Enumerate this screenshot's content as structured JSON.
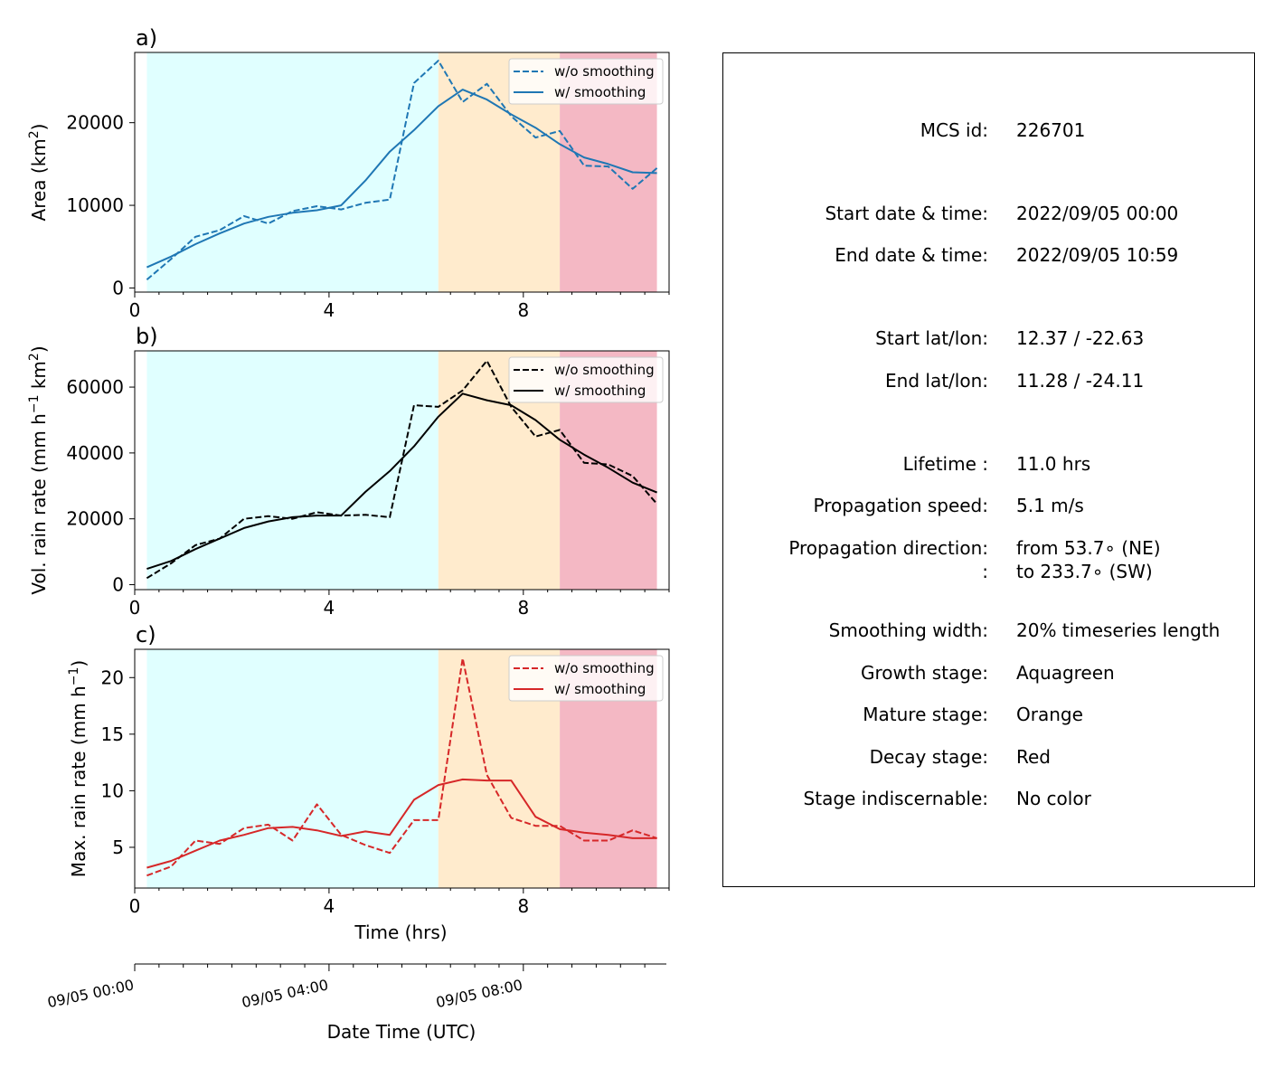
{
  "figure": {
    "stage_colors": {
      "growth": "#e0ffff",
      "mature": "#ffebcd",
      "decay": "#f4b8c4"
    },
    "stage_spans_hrs": {
      "growth": [
        0.25,
        6.25
      ],
      "mature": [
        6.25,
        8.75
      ],
      "decay": [
        8.75,
        10.75
      ]
    },
    "x_axis": {
      "label": "Time (hrs)",
      "ticks": [
        0,
        4,
        8
      ],
      "tick_labels": [
        "0",
        "4",
        "8"
      ],
      "xlim": [
        0,
        11
      ],
      "minor_step": 0.5
    },
    "datetime_axis": {
      "label": "Date Time (UTC)",
      "tick_labels": [
        "09/05 00:00",
        "09/05 04:00",
        "09/05 08:00"
      ]
    }
  },
  "chart_data": [
    {
      "type": "line",
      "panel_label": "a)",
      "ylabel": "Area  (km",
      "ylabel_sup": "2",
      "ylabel_end": ")",
      "ylim": [
        -500,
        28500
      ],
      "yticks": [
        0,
        10000,
        20000
      ],
      "ytick_labels": [
        "0",
        "10000",
        "20000"
      ],
      "color": "#1f77b4",
      "legend_position": "top-right",
      "x": [
        0.25,
        0.75,
        1.25,
        1.75,
        2.25,
        2.75,
        3.25,
        3.75,
        4.25,
        4.75,
        5.25,
        5.75,
        6.25,
        6.75,
        7.25,
        7.75,
        8.25,
        8.75,
        9.25,
        9.75,
        10.25,
        10.75
      ],
      "series": [
        {
          "name": "w/o smoothing",
          "style": "dashed",
          "values": [
            1000,
            3500,
            6200,
            7000,
            8700,
            7800,
            9300,
            9900,
            9500,
            10300,
            10700,
            24800,
            27500,
            22500,
            24700,
            20800,
            18200,
            19000,
            14800,
            14700,
            12000,
            14500
          ]
        },
        {
          "name": "w/ smoothing",
          "style": "solid",
          "values": [
            2500,
            3800,
            5300,
            6600,
            7800,
            8600,
            9100,
            9400,
            10000,
            13000,
            16500,
            19100,
            22000,
            24000,
            22800,
            21000,
            19400,
            17400,
            15800,
            15000,
            14000,
            13900
          ]
        }
      ]
    },
    {
      "type": "line",
      "panel_label": "b)",
      "ylabel": "Vol. rain rate (mm h",
      "ylabel_sup": "−1",
      "ylabel_mid": " km",
      "ylabel_sup2": "2",
      "ylabel_end": ")",
      "ylim": [
        -1500,
        71000
      ],
      "yticks": [
        0,
        20000,
        40000,
        60000
      ],
      "ytick_labels": [
        "0",
        "20000",
        "40000",
        "60000"
      ],
      "color": "#000000",
      "legend_position": "top-right",
      "x": [
        0.25,
        0.75,
        1.25,
        1.75,
        2.25,
        2.75,
        3.25,
        3.75,
        4.25,
        4.75,
        5.25,
        5.75,
        6.25,
        6.75,
        7.25,
        7.75,
        8.25,
        8.75,
        9.25,
        9.75,
        10.25,
        10.75
      ],
      "series": [
        {
          "name": "w/o smoothing",
          "style": "dashed",
          "values": [
            2000,
            6500,
            12000,
            14000,
            20000,
            20800,
            20000,
            22000,
            21000,
            21200,
            20500,
            54500,
            54000,
            59000,
            68000,
            54000,
            45000,
            47000,
            37000,
            36500,
            33000,
            24500
          ]
        },
        {
          "name": "w/ smoothing",
          "style": "solid",
          "values": [
            4800,
            7200,
            10800,
            14000,
            17200,
            19200,
            20500,
            21000,
            21000,
            28200,
            34500,
            42000,
            51000,
            58000,
            56000,
            54500,
            50000,
            44000,
            39500,
            35500,
            31000,
            28000
          ]
        }
      ]
    },
    {
      "type": "line",
      "panel_label": "c)",
      "ylabel": "Max. rain rate  (mm h",
      "ylabel_sup": "−1",
      "ylabel_end": ")",
      "ylim": [
        1.4,
        22.5
      ],
      "yticks": [
        5,
        10,
        15,
        20
      ],
      "ytick_labels": [
        "5",
        "10",
        "15",
        "20"
      ],
      "color": "#d62728",
      "legend_position": "top-right",
      "x": [
        0.25,
        0.75,
        1.25,
        1.75,
        2.25,
        2.75,
        3.25,
        3.75,
        4.25,
        4.75,
        5.25,
        5.75,
        6.25,
        6.75,
        7.25,
        7.75,
        8.25,
        8.75,
        9.25,
        9.75,
        10.25,
        10.75
      ],
      "series": [
        {
          "name": "w/o smoothing",
          "style": "dashed",
          "values": [
            2.5,
            3.3,
            5.6,
            5.3,
            6.7,
            7.0,
            5.6,
            8.8,
            6.1,
            5.2,
            4.5,
            7.4,
            7.4,
            21.7,
            11.4,
            7.6,
            6.9,
            6.9,
            5.6,
            5.6,
            6.5,
            5.8
          ]
        },
        {
          "name": "w/ smoothing",
          "style": "solid",
          "values": [
            3.2,
            3.8,
            4.7,
            5.6,
            6.1,
            6.7,
            6.8,
            6.5,
            6.0,
            6.4,
            6.1,
            9.2,
            10.5,
            11.0,
            10.9,
            10.9,
            7.7,
            6.6,
            6.3,
            6.1,
            5.8,
            5.8
          ]
        }
      ]
    }
  ],
  "info_panel": {
    "rows": [
      {
        "key": "MCS id:",
        "value": "226701"
      },
      {
        "key": "Start date & time:",
        "value": "2022/09/05 00:00"
      },
      {
        "key": "End date & time:",
        "value": "2022/09/05 10:59"
      },
      {
        "key": "Start lat/lon:",
        "value": "12.37 / -22.63"
      },
      {
        "key": "End lat/lon:",
        "value": "11.28 / -24.11"
      },
      {
        "key": "Lifetime :",
        "value": "11.0 hrs"
      },
      {
        "key": "Propagation speed:",
        "value": "5.1 m/s"
      },
      {
        "key": "Propagation direction:",
        "value": "from  53.7∘ (NE)"
      },
      {
        "key": ":",
        "value": "to   233.7∘ (SW)"
      },
      {
        "key": "Smoothing width:",
        "value": "20% timeseries length"
      },
      {
        "key": "Growth stage:",
        "value": "Aquagreen"
      },
      {
        "key": "Mature stage:",
        "value": "Orange"
      },
      {
        "key": "Decay stage:",
        "value": "Red"
      },
      {
        "key": "Stage indiscernable:",
        "value": "No color"
      }
    ]
  }
}
